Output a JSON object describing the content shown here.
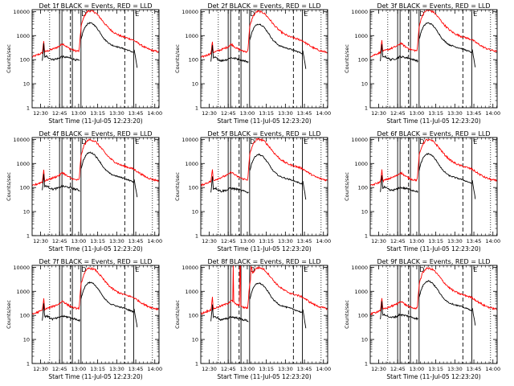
{
  "chart_data": {
    "type": "line",
    "xlabel": "Start Time (11-Jul-05 12:23:20)",
    "ylabel": "Counts/sec",
    "x_tick_labels": [
      "12:30",
      "12:45",
      "13:00",
      "13:15",
      "13:30",
      "13:45",
      "14:00"
    ],
    "x_ticks_minutes": [
      6.67,
      21.67,
      36.67,
      51.67,
      66.67,
      81.67,
      96.67
    ],
    "xlim_minutes": [
      0,
      100
    ],
    "y_scale": "log",
    "ylim": [
      1,
      12000
    ],
    "y_tick_labels": [
      "1",
      "10",
      "100",
      "1000",
      "10000"
    ],
    "y_ticks": [
      1,
      10,
      100,
      1000,
      10000
    ],
    "series_colors": {
      "events": "#000000",
      "lld": "#ff0000"
    },
    "markers": {
      "solid": [
        21.6,
        23.5,
        38.5
      ],
      "dotted": [
        13.8,
        94.8
      ],
      "dashed_pairs": [
        [
          30.2,
          31.7
        ],
        [
          73.0,
          80.1
        ]
      ],
      "annotations": [
        {
          "x": 38.8,
          "label": "D"
        },
        {
          "x": 81.2,
          "label": "E"
        }
      ]
    },
    "shape_events": [
      [
        0,
        60
      ],
      [
        8,
        85
      ],
      [
        9.2,
        450
      ],
      [
        9.8,
        120
      ],
      [
        11,
        140
      ],
      [
        16,
        100
      ],
      [
        21.5,
        115
      ],
      [
        23,
        135
      ],
      [
        29,
        120
      ],
      [
        34,
        100
      ],
      [
        36,
        95
      ],
      [
        37,
        90
      ],
      [
        38.4,
        85
      ],
      [
        38.6,
        700
      ],
      [
        40,
        1400
      ],
      [
        42,
        2400
      ],
      [
        44,
        3200
      ],
      [
        46,
        3400
      ],
      [
        49,
        2800
      ],
      [
        53,
        1500
      ],
      [
        57,
        700
      ],
      [
        62,
        420
      ],
      [
        68,
        330
      ],
      [
        72,
        290
      ],
      [
        78,
        220
      ],
      [
        80,
        200
      ],
      [
        80.1,
        60
      ],
      [
        81.5,
        58
      ]
    ],
    "shape_lld": [
      [
        0,
        130
      ],
      [
        8,
        190
      ],
      [
        9.2,
        600
      ],
      [
        9.8,
        210
      ],
      [
        13,
        240
      ],
      [
        18,
        300
      ],
      [
        21.5,
        360
      ],
      [
        24,
        470
      ],
      [
        28,
        320
      ],
      [
        33,
        240
      ],
      [
        37,
        225
      ],
      [
        38.6,
        2500
      ],
      [
        41,
        6500
      ],
      [
        44,
        10500
      ],
      [
        47,
        10500
      ],
      [
        50,
        9000
      ],
      [
        54,
        5200
      ],
      [
        58,
        2800
      ],
      [
        62,
        1700
      ],
      [
        66,
        1200
      ],
      [
        70,
        950
      ],
      [
        76,
        760
      ],
      [
        80,
        650
      ],
      [
        85,
        430
      ],
      [
        90,
        300
      ],
      [
        95,
        240
      ],
      [
        100,
        210
      ]
    ],
    "panels": [
      {
        "title": "Det 1f BLACK = Events, RED = LLD",
        "events_scale": 1.0,
        "lld_scale": 1.0,
        "events_end": 83,
        "lld_spikes": [],
        "events_spikes": []
      },
      {
        "title": "Det 2f BLACK = Events, RED = LLD",
        "events_scale": 0.9,
        "lld_scale": 0.95,
        "events_end": 83,
        "lld_spikes": [],
        "events_spikes": []
      },
      {
        "title": "Det 3f BLACK = Events, RED = LLD",
        "events_scale": 1.0,
        "lld_scale": 1.05,
        "events_end": 83,
        "lld_spikes": [],
        "events_spikes": []
      },
      {
        "title": "Det 4f BLACK = Events, RED = LLD",
        "events_scale": 0.85,
        "lld_scale": 0.9,
        "events_end": 83,
        "lld_spikes": [],
        "events_spikes": []
      },
      {
        "title": "Det 5f BLACK = Events, RED = LLD",
        "events_scale": 0.7,
        "lld_scale": 0.95,
        "events_end": 83,
        "lld_spikes": [],
        "events_spikes": []
      },
      {
        "title": "Det 6f BLACK = Events, RED = LLD",
        "events_scale": 0.75,
        "lld_scale": 0.9,
        "events_end": 83,
        "lld_spikes": [],
        "events_spikes": []
      },
      {
        "title": "Det 7f BLACK = Events, RED = LLD",
        "events_scale": 0.7,
        "lld_scale": 0.85,
        "events_end": 83,
        "lld_spikes": [],
        "events_spikes": []
      },
      {
        "title": "Det 8f BLACK = Events, RED = LLD",
        "events_scale": 0.65,
        "lld_scale": 0.9,
        "events_end": 83,
        "lld_spikes": [
          [
            25.5,
            12000
          ],
          [
            30.8,
            12000
          ],
          [
            31.3,
            12000
          ],
          [
            39.5,
            11000
          ],
          [
            40.2,
            9000
          ]
        ],
        "events_spikes": []
      },
      {
        "title": "Det 9f BLACK = Events, RED = LLD",
        "events_scale": 0.8,
        "lld_scale": 0.85,
        "events_end": 83,
        "lld_spikes": [],
        "events_spikes": []
      }
    ]
  }
}
